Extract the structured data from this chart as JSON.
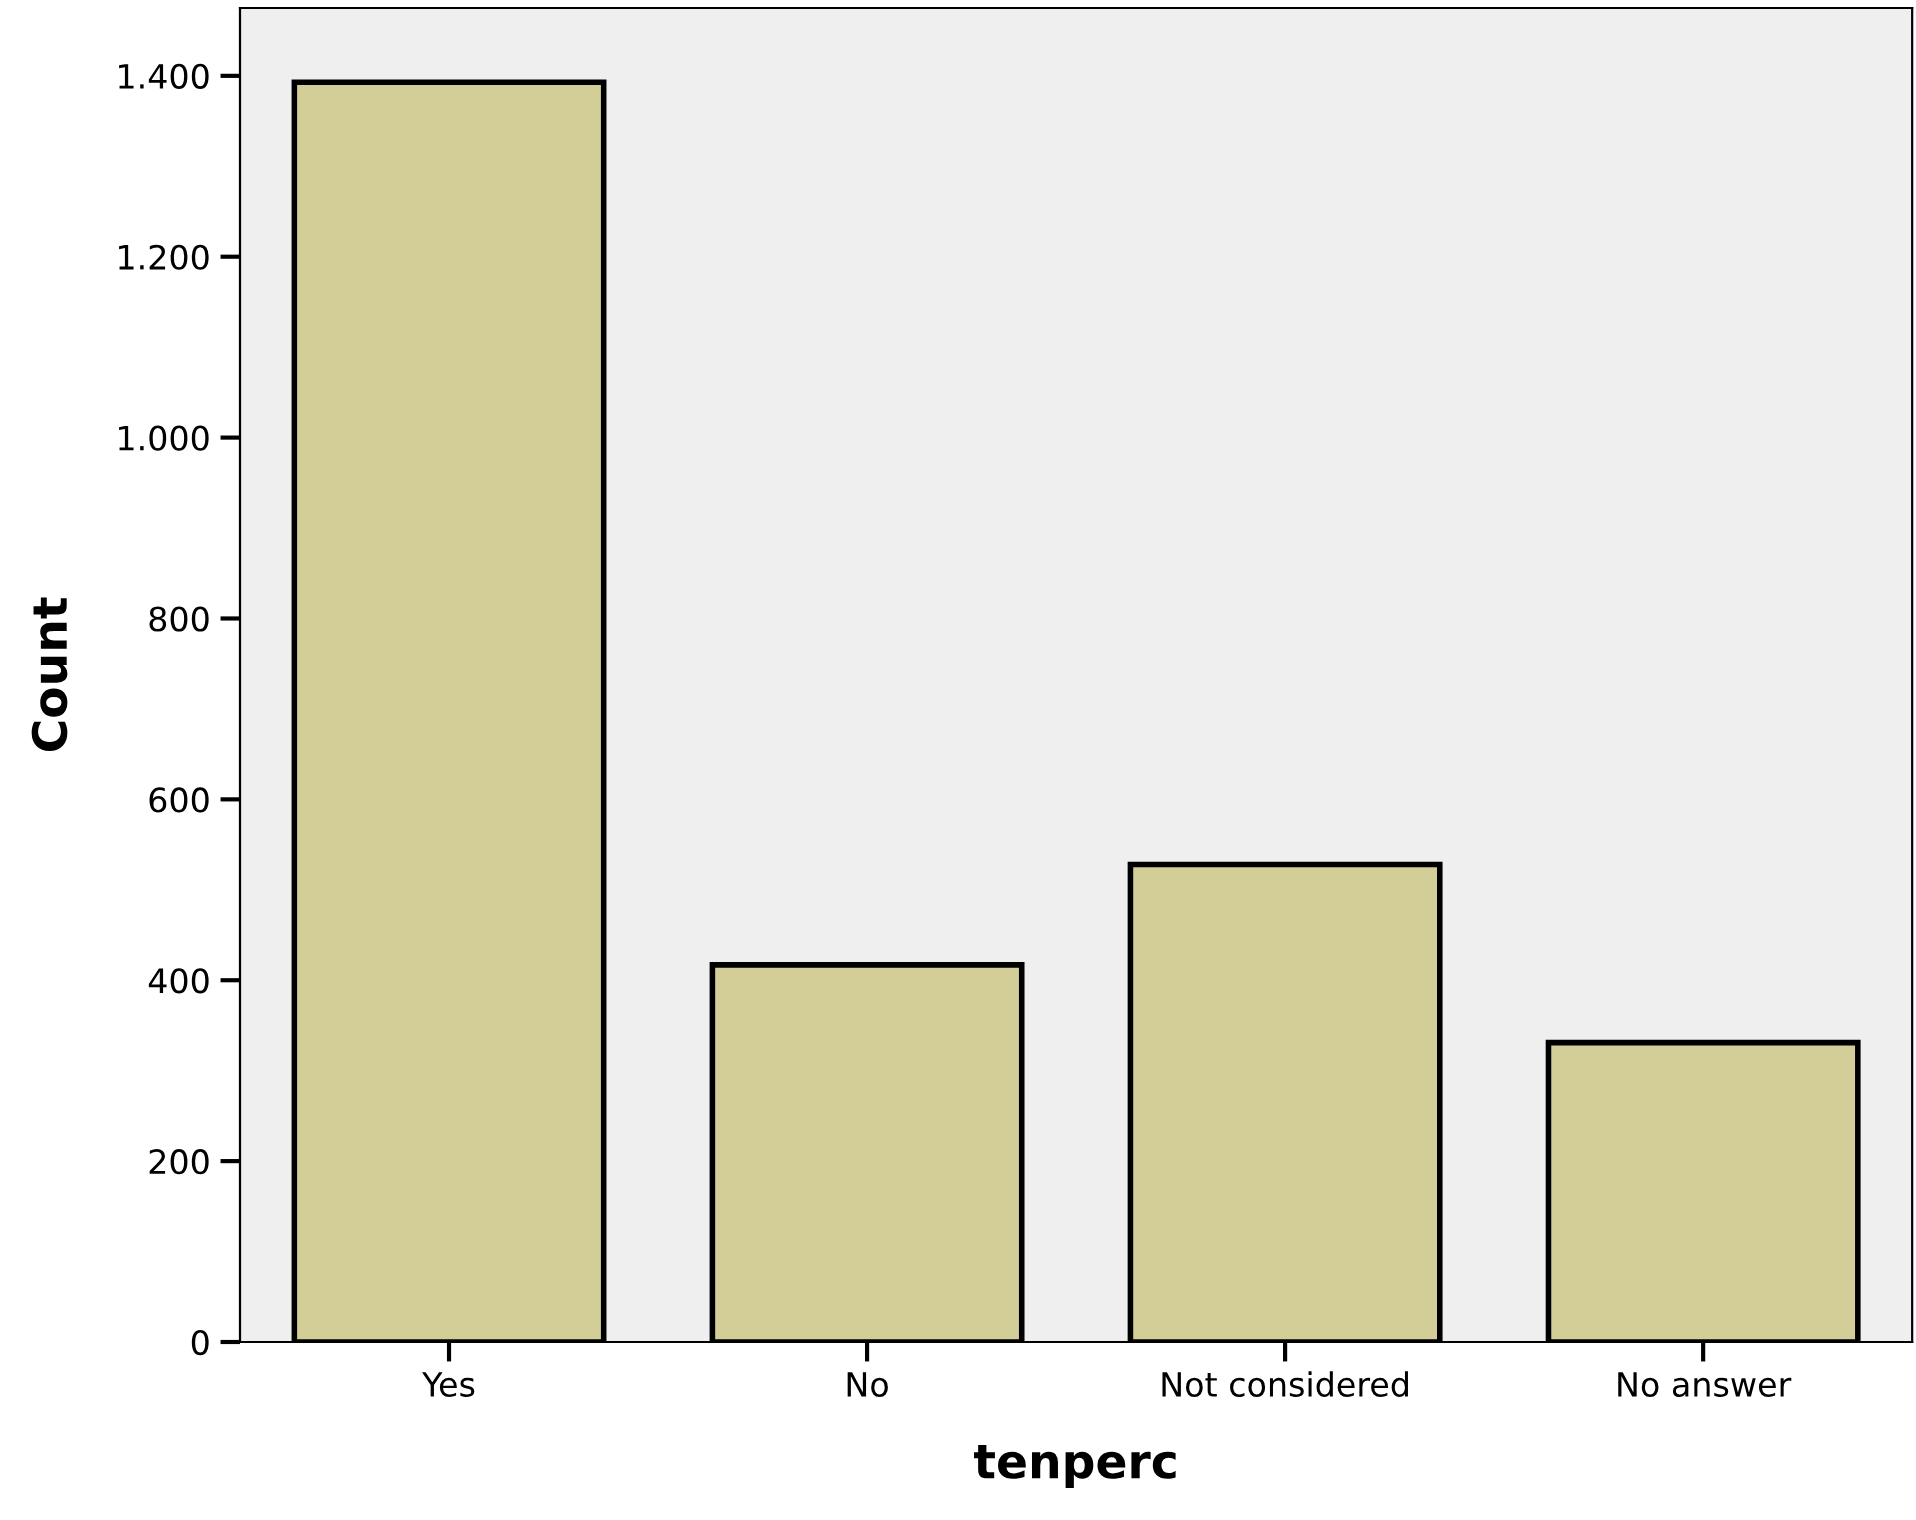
{
  "chart_data": {
    "type": "bar",
    "xlabel": "tenperc",
    "ylabel": "Count",
    "categories": [
      "Yes",
      "No",
      "Not considered",
      "No answer"
    ],
    "values": [
      1393,
      417,
      528,
      331
    ],
    "color": "#d3cd97",
    "ylim": [
      0,
      1475
    ],
    "yticks": [
      0,
      200,
      400,
      600,
      800,
      {
        "value": 1000,
        "label": "1.000"
      },
      {
        "value": 1200,
        "label": "1.200"
      },
      {
        "value": 1400,
        "label": "1.400"
      }
    ],
    "grid": false
  }
}
